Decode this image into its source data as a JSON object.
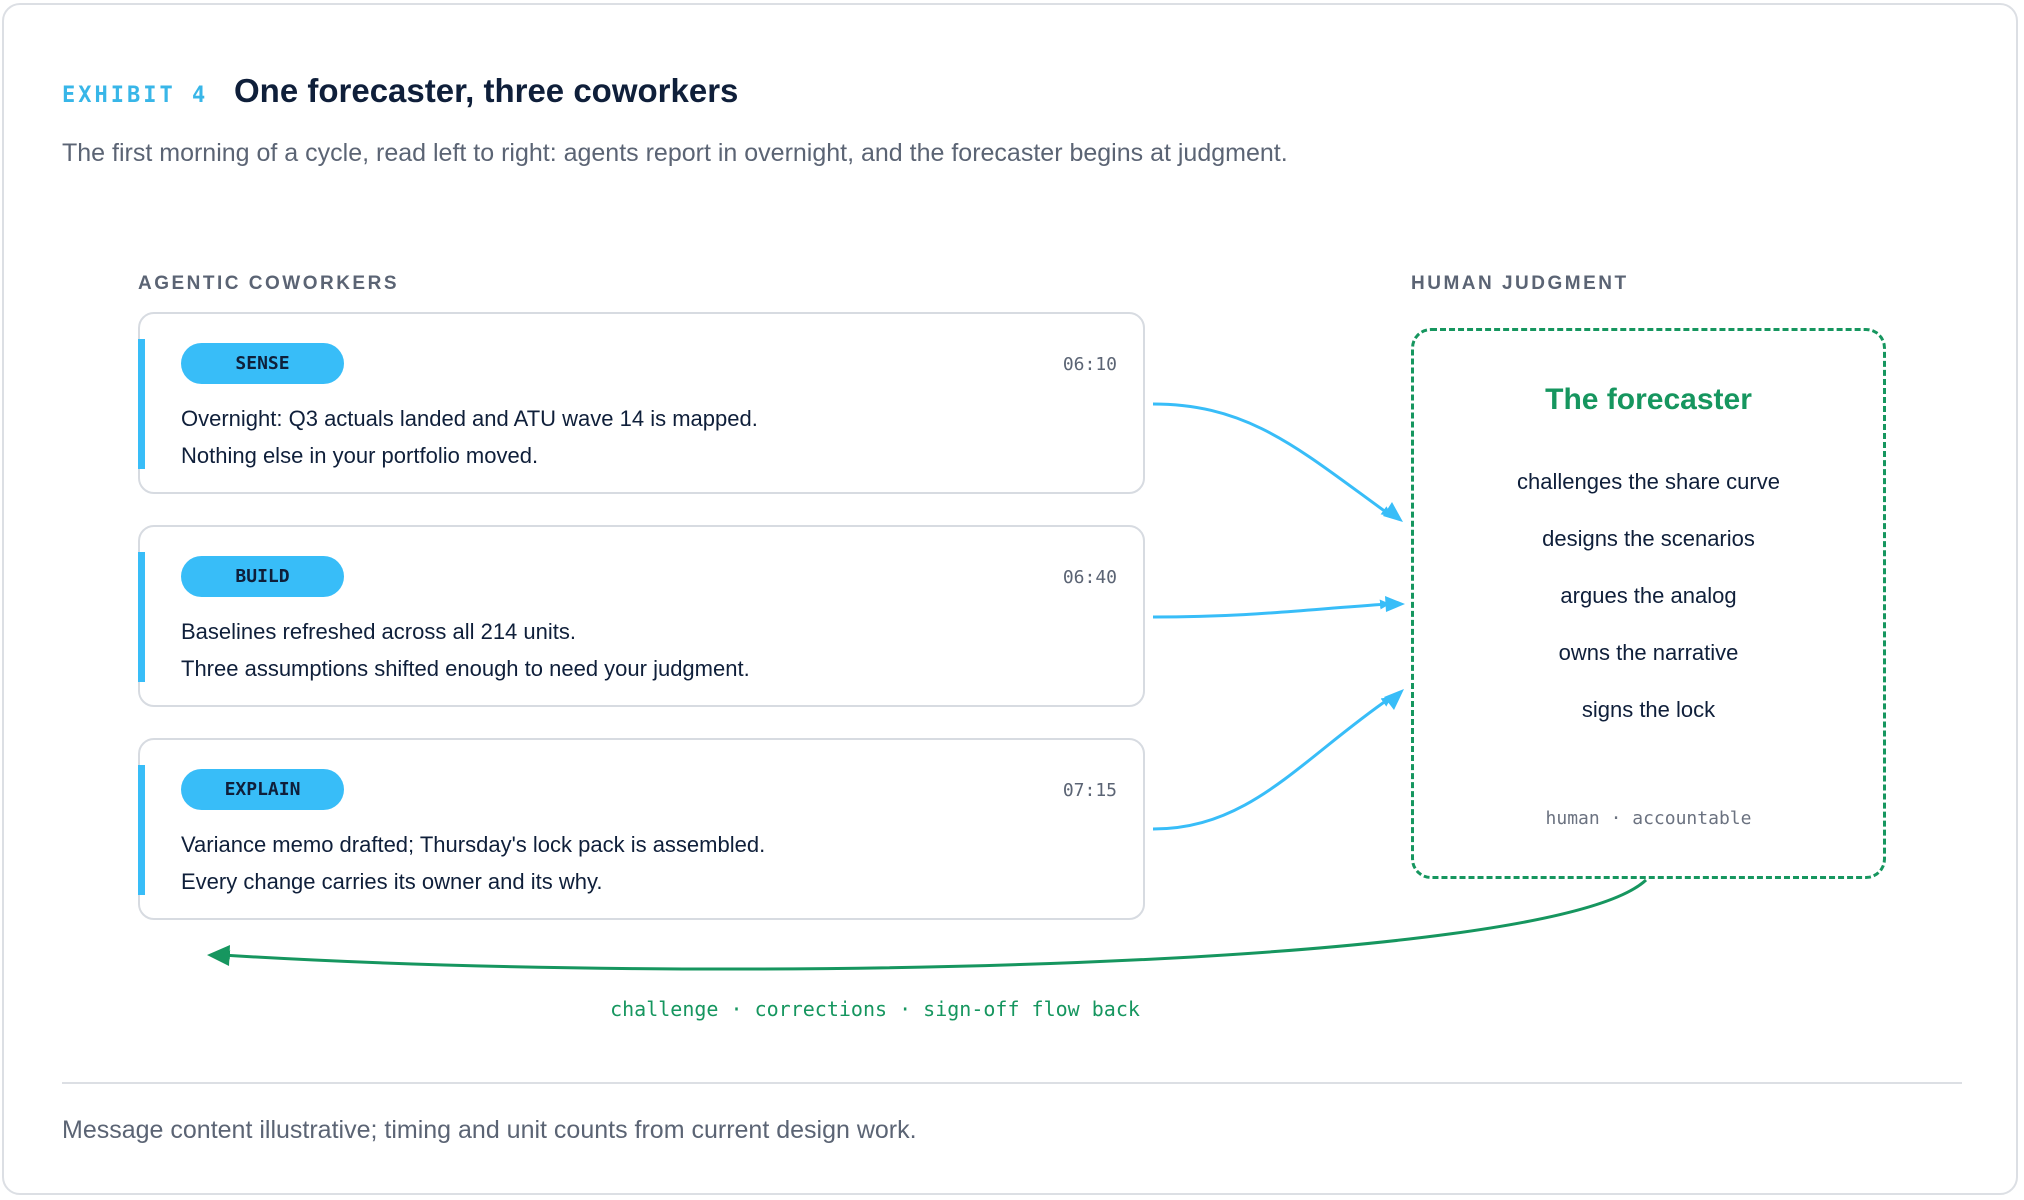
{
  "header": {
    "exhibit": "EXHIBIT 4",
    "title": "One forecaster, three coworkers",
    "subtitle": "The first morning of a cycle, read left to right: agents report in overnight, and the forecaster begins at judgment."
  },
  "agents": {
    "label": "AGENTIC COWORKERS",
    "cards": [
      {
        "tag": "SENSE",
        "time": "06:10",
        "lines": [
          "Overnight: Q3 actuals landed and ATU wave 14 is mapped.",
          "Nothing else in your portfolio moved."
        ]
      },
      {
        "tag": "BUILD",
        "time": "06:40",
        "lines": [
          "Baselines refreshed across all 214 units.",
          "Three assumptions shifted enough to need your judgment."
        ]
      },
      {
        "tag": "EXPLAIN",
        "time": "07:15",
        "lines": [
          "Variance memo drafted; Thursday's lock pack is assembled.",
          "Every change carries its owner and its why."
        ]
      }
    ]
  },
  "human": {
    "label": "HUMAN JUDGMENT",
    "title": "The forecaster",
    "duties": [
      "challenges the share curve",
      "designs the scenarios",
      "argues the analog",
      "owns the narrative",
      "signs the lock"
    ],
    "footer": "human · accountable"
  },
  "feedback": "challenge · corrections · sign-off flow back",
  "footnote": "Message content illustrative; timing and unit counts from current design work."
}
